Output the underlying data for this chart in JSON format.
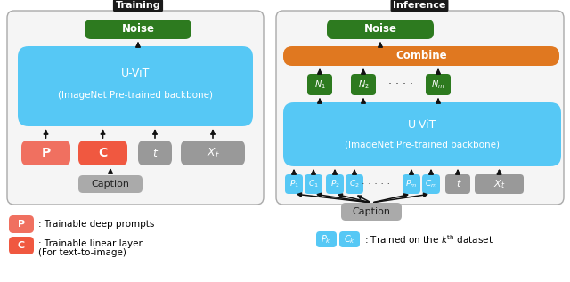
{
  "fig_width": 6.4,
  "fig_height": 3.17,
  "dpi": 100,
  "bg_color": "#ffffff",
  "colors": {
    "noise_green": "#2d7a1f",
    "uvit_blue": "#56c8f5",
    "p_red": "#f07060",
    "c_red": "#f05840",
    "gray": "#999999",
    "combine_orange": "#e07820",
    "n_green": "#2d7a1f",
    "caption_gray": "#aaaaaa",
    "pk_ck_blue": "#56c8f5",
    "panel_bg": "#f5f5f5",
    "panel_ec": "#aaaaaa",
    "title_bg": "#1a1a1a",
    "arrow_color": "#111111"
  },
  "training_title": "Training",
  "inference_title": "Inference",
  "uvit_label1": "U-ViT",
  "uvit_label2": "(ImageNet Pre-trained backbone)",
  "noise_label": "Noise",
  "combine_label": "Combine",
  "caption_label": "Caption",
  "legend_p_label": ": Trainable deep prompts",
  "legend_c_line1": ": Trainable linear layer",
  "legend_c_line2": "(For text-to-image)",
  "legend_pk_ck_label": ": Trained on the $k^{\\mathrm{th}}$ dataset"
}
